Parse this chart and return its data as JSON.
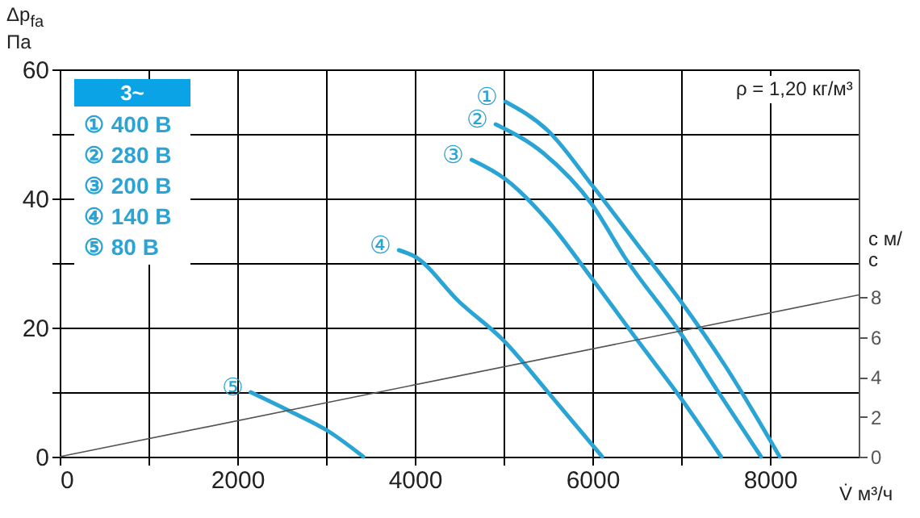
{
  "chart_data": {
    "type": "line",
    "xlabel": "V̇ м³/ч",
    "ylabel": "Δp$_{fa}$ Па",
    "y2label": "с м/с",
    "legend_title": "3~",
    "grid": true,
    "xlim": [
      0,
      9000
    ],
    "xticks": [
      0,
      {
        "value": 1000,
        "label": null
      },
      2000,
      {
        "value": 3000,
        "label": null
      },
      4000,
      {
        "value": 5000,
        "label": null
      },
      6000,
      {
        "value": 7000,
        "label": null
      },
      8000
    ],
    "ylim": [
      0,
      60
    ],
    "yticks": [
      0,
      {
        "value": 10,
        "label": null
      },
      20,
      {
        "value": 30,
        "label": null
      },
      40,
      {
        "value": 50,
        "label": null
      },
      60
    ],
    "y2lim": [
      0,
      19.4
    ],
    "y2ticks": [
      0,
      2,
      4,
      6,
      8
    ],
    "series": [
      {
        "name": "①",
        "color": "#2aa4d5",
        "x": [
          5020,
          5500,
          6000,
          6500,
          7000,
          7500,
          8110
        ],
        "values": [
          55,
          50.5,
          42,
          33,
          24,
          14,
          0
        ]
      },
      {
        "name": "②",
        "color": "#2aa4d5",
        "x": [
          4910,
          5450,
          6000,
          6360,
          7000,
          7420,
          7900
        ],
        "values": [
          51.5,
          47,
          39,
          31,
          19,
          10,
          0
        ]
      },
      {
        "name": "③",
        "color": "#2aa4d5",
        "x": [
          4640,
          5020,
          5500,
          6000,
          6510,
          7000,
          7450
        ],
        "values": [
          46,
          43,
          36.5,
          27.5,
          18,
          9,
          0
        ]
      },
      {
        "name": "④",
        "color": "#2aa4d5",
        "x": [
          3820,
          4000,
          4500,
          5000,
          5500,
          6110
        ],
        "values": [
          32,
          31,
          24,
          18,
          10,
          0
        ]
      },
      {
        "name": "⑤",
        "color": "#2aa4d5",
        "x": [
          2150,
          2600,
          3020,
          3420
        ],
        "values": [
          10,
          7,
          4,
          0
        ]
      },
      {
        "type": "line",
        "axis": "y2",
        "color": "#555555",
        "x": [
          0,
          9000
        ],
        "values": [
          0,
          8.1
        ]
      }
    ],
    "annotations": [
      "ρ = 1,20 кг/м³",
      "① 400 В",
      "② 280 В",
      "③ 200 В",
      "④ 140 В",
      "⑤ 80 В"
    ]
  }
}
